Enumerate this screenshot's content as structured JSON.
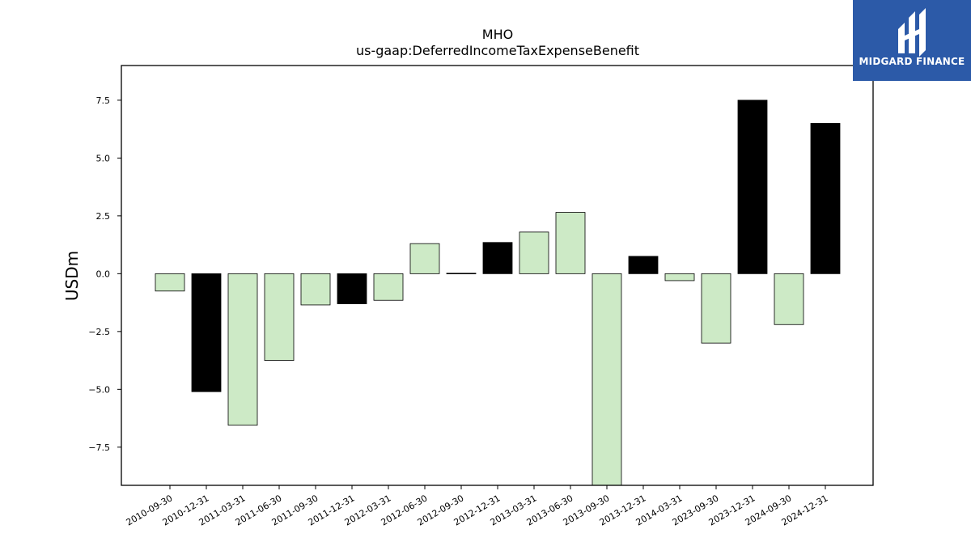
{
  "chart_data": {
    "type": "bar",
    "title": "MHO",
    "subtitle": "us-gaap:DeferredIncomeTaxExpenseBenefit",
    "ylabel": "USDm",
    "xlabel": "",
    "ylim": [
      -9.15,
      9.0
    ],
    "yticks": [
      -7.5,
      -5.0,
      -2.5,
      0.0,
      2.5,
      5.0,
      7.5
    ],
    "ytick_labels": [
      "−7.5",
      "−5.0",
      "−2.5",
      "0.0",
      "2.5",
      "5.0",
      "7.5"
    ],
    "grid": false,
    "categories": [
      "2010-09-30",
      "2010-12-31",
      "2011-03-31",
      "2011-06-30",
      "2011-09-30",
      "2011-12-31",
      "2012-03-31",
      "2012-06-30",
      "2012-09-30",
      "2012-12-31",
      "2013-03-31",
      "2013-06-30",
      "2013-09-30",
      "2013-12-31",
      "2014-03-31",
      "2023-09-30",
      "2023-12-31",
      "2024-09-30",
      "2024-12-31"
    ],
    "values": [
      -0.75,
      -5.1,
      -6.55,
      -3.75,
      -1.35,
      -1.3,
      -1.15,
      1.3,
      0.02,
      1.35,
      1.8,
      2.65,
      -9.3,
      0.75,
      -0.3,
      -3.0,
      7.5,
      -2.2,
      6.5
    ],
    "bar_colors": [
      "#cdeac6",
      "#000000",
      "#cdeac6",
      "#cdeac6",
      "#cdeac6",
      "#000000",
      "#cdeac6",
      "#cdeac6",
      "#000000",
      "#000000",
      "#cdeac6",
      "#cdeac6",
      "#cdeac6",
      "#000000",
      "#cdeac6",
      "#cdeac6",
      "#000000",
      "#cdeac6",
      "#000000"
    ]
  },
  "logo": {
    "text": "MIDGARD FINANCE",
    "background": "#2c5aa8"
  }
}
